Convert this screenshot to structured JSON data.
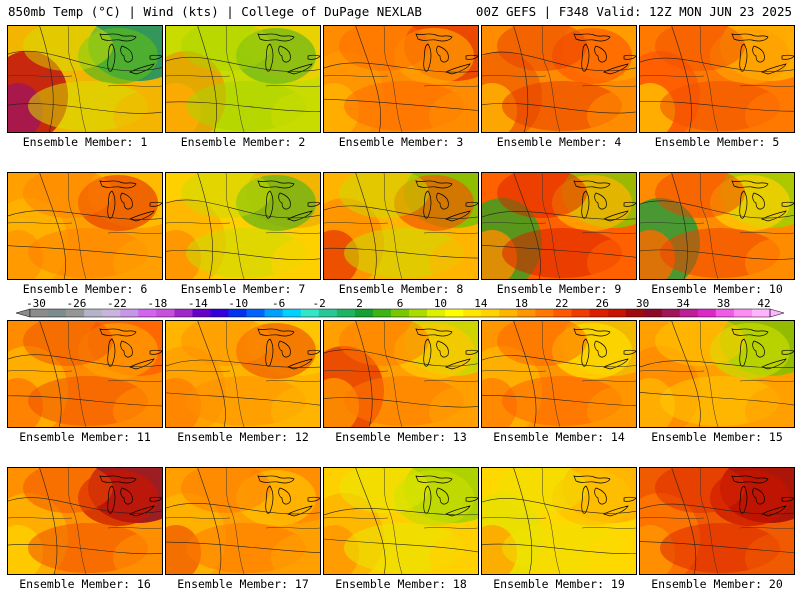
{
  "header": {
    "left": "850mb Temp (°C) | Wind (kts) | College of DuPage NEXLAB",
    "right": "00Z GEFS | F348 Valid: 12Z MON JUN 23 2025"
  },
  "colorbar": {
    "labels": [
      "-30",
      "-26",
      "-22",
      "-18",
      "-14",
      "-10",
      "-6",
      "-2",
      "2",
      "6",
      "10",
      "14",
      "18",
      "22",
      "26",
      "30",
      "34",
      "38",
      "42"
    ],
    "colors": [
      "#8c8c8c",
      "#7d8c8c",
      "#969696",
      "#b4b4c8",
      "#c8b4dc",
      "#c896e6",
      "#d264f0",
      "#c850dc",
      "#a028c8",
      "#6400c8",
      "#3200dc",
      "#0032f0",
      "#0064ff",
      "#00a0ff",
      "#00d2ff",
      "#32e6c8",
      "#28c896",
      "#1eb464",
      "#14a032",
      "#3cb414",
      "#78c800",
      "#aadc00",
      "#dcf000",
      "#ffff00",
      "#ffe600",
      "#ffd200",
      "#ffb400",
      "#ff9600",
      "#ff7800",
      "#ff5a00",
      "#f03c00",
      "#dc1e00",
      "#c81400",
      "#a00a0a",
      "#8c0a28",
      "#a0145a",
      "#be1e96",
      "#dc28c8",
      "#f05ae6",
      "#ff8cf0",
      "#ffb4ff"
    ]
  },
  "members": [
    {
      "label": "Ensemble Member: 1"
    },
    {
      "label": "Ensemble Member: 2"
    },
    {
      "label": "Ensemble Member: 3"
    },
    {
      "label": "Ensemble Member: 4"
    },
    {
      "label": "Ensemble Member: 5"
    },
    {
      "label": "Ensemble Member: 6"
    },
    {
      "label": "Ensemble Member: 7"
    },
    {
      "label": "Ensemble Member: 8"
    },
    {
      "label": "Ensemble Member: 9"
    },
    {
      "label": "Ensemble Member: 10"
    },
    {
      "label": "Ensemble Member: 11"
    },
    {
      "label": "Ensemble Member: 12"
    },
    {
      "label": "Ensemble Member: 13"
    },
    {
      "label": "Ensemble Member: 14"
    },
    {
      "label": "Ensemble Member: 15"
    },
    {
      "label": "Ensemble Member: 16"
    },
    {
      "label": "Ensemble Member: 17"
    },
    {
      "label": "Ensemble Member: 18"
    },
    {
      "label": "Ensemble Member: 19"
    },
    {
      "label": "Ensemble Member: 20"
    }
  ]
}
